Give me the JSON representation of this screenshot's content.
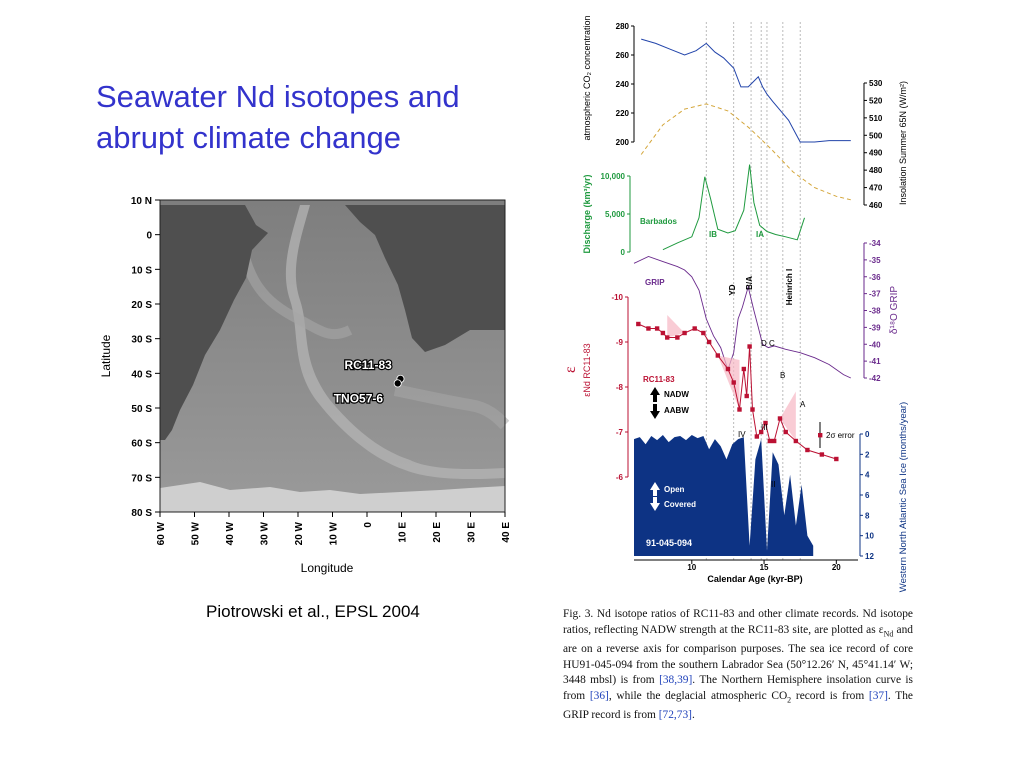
{
  "slide": {
    "title_line1": "Seawater Nd isotopes and",
    "title_line2": "abrupt climate change",
    "citation": "Piotrowski et al., EPSL 2004"
  },
  "map": {
    "lat_labels": [
      "10 N",
      "0",
      "10 S",
      "20 S",
      "30 S",
      "40 S",
      "50 S",
      "60 S",
      "70 S",
      "80 S"
    ],
    "lon_labels": [
      "60 W",
      "50 W",
      "40 W",
      "30 W",
      "20 W",
      "10 W",
      "0",
      "10 E",
      "20 E",
      "30 E",
      "40 E"
    ],
    "ylabel": "Latitude",
    "xlabel": "Longitude",
    "sites": [
      {
        "name": "RC11-83",
        "lat": -41.6,
        "lon": 9.7
      },
      {
        "name": "TNO57-6",
        "lat": -42.9,
        "lon": 8.9
      }
    ],
    "colors": {
      "ocean": "#8c8c8c",
      "land": "#4f4f4f",
      "ridge": "#b4b4b4"
    }
  },
  "chart_data": [
    {
      "type": "line",
      "title": "",
      "xlabel": "Calendar Age (kyr-BP)",
      "x_ticks": [
        10,
        15,
        20
      ],
      "xlim": [
        6,
        21.5
      ],
      "event_lines": [
        11,
        12.9,
        14.1,
        14.8,
        15.2,
        16.3,
        17.5
      ],
      "panels": [
        {
          "name": "co2",
          "ylabel": "atmospheric CO₂ concentration",
          "axis": "left",
          "yticks": [
            "280",
            "260",
            "240",
            "220",
            "200"
          ],
          "ylim": [
            200,
            280
          ],
          "color": "#2244aa",
          "series": [
            {
              "x": [
                6.5,
                7.5,
                8.5,
                9.5,
                10.3,
                11.0,
                11.6,
                12.2,
                12.9,
                13.4,
                13.9,
                14.1,
                14.6,
                14.9,
                15.2,
                15.6,
                16.1,
                16.7,
                17.5,
                18.5,
                19.5,
                20.5,
                21.0
              ],
              "y": [
                271,
                268,
                264,
                260,
                263,
                268,
                262,
                258,
                251,
                238,
                238,
                240,
                245,
                238,
                233,
                228,
                222,
                215,
                200,
                200,
                201,
                201,
                201
              ]
            }
          ]
        },
        {
          "name": "insolation",
          "ylabel": "Insolation Summer 65N (W/m²)",
          "axis": "right",
          "yticks": [
            "530",
            "520",
            "510",
            "500",
            "490",
            "480",
            "470",
            "460"
          ],
          "ylim": [
            460,
            530
          ],
          "color": "#d4a63a",
          "style": "dashed",
          "series": [
            {
              "x": [
                6.5,
                8,
                9.5,
                11,
                12.5,
                14,
                15.5,
                17,
                18.5,
                20,
                21
              ],
              "y": [
                489,
                506,
                515,
                518,
                514,
                504,
                492,
                479,
                470,
                465,
                463
              ]
            }
          ]
        },
        {
          "name": "discharge",
          "ylabel": "Discharge (km³/yr)",
          "axis": "left",
          "yticks": [
            "10,000",
            "5,000",
            "0"
          ],
          "ylim": [
            0,
            10000
          ],
          "color": "#1f9a3f",
          "label": "Barbados",
          "peaks": [
            "IB",
            "IA"
          ],
          "series": [
            {
              "x": [
                8,
                9,
                10,
                10.5,
                10.9,
                11.3,
                11.8,
                12.5,
                13,
                13.6,
                14.0,
                14.3,
                14.7,
                15.2,
                15.8,
                16.5,
                17.3,
                17.8
              ],
              "y": [
                300,
                1200,
                2000,
                4500,
                9900,
                7000,
                3000,
                2500,
                2800,
                5500,
                11500,
                6500,
                3500,
                2700,
                2300,
                2000,
                1600,
                4500
              ]
            }
          ]
        },
        {
          "name": "grip",
          "ylabel": "δ¹⁸O GRIP",
          "axis": "right",
          "yticks": [
            "-34",
            "-35",
            "-36",
            "-37",
            "-38",
            "-39",
            "-40",
            "-41",
            "-42"
          ],
          "ylim": [
            -42,
            -34
          ],
          "color": "#6a2a8c",
          "label": "GRIP",
          "annotations": [
            "YD",
            "B/A",
            "Heinrich I"
          ],
          "series": [
            {
              "x": [
                6,
                7,
                8,
                9,
                9.5,
                10,
                10.5,
                11,
                11.5,
                12,
                12.5,
                12.9,
                13.2,
                13.5,
                13.9,
                14.3,
                14.6,
                14.9,
                15.3,
                15.7,
                16.5,
                17.5,
                18.5,
                19.5,
                20.5,
                21
              ],
              "y": [
                -35.2,
                -34.8,
                -35.1,
                -35.4,
                -35.6,
                -36,
                -36.8,
                -38.5,
                -39.5,
                -40.2,
                -41.5,
                -40.5,
                -38.5,
                -37.8,
                -36.6,
                -38.0,
                -39.0,
                -40.0,
                -40.2,
                -40.1,
                -40.3,
                -40.5,
                -40.8,
                -41.2,
                -41.8,
                -42
              ]
            }
          ]
        },
        {
          "name": "end",
          "ylabel": "εNd RC11-83",
          "axis": "left",
          "yticks": [
            "-10",
            "-9",
            "-8",
            "-7",
            "-6"
          ],
          "ylim": [
            -10.3,
            -5.8
          ],
          "reverse": true,
          "color": "#bb1133",
          "label": "RC11-83",
          "legend": [
            "NADW",
            "AABW"
          ],
          "error_label": "2σ error",
          "event_labels": [
            "D",
            "C",
            "B",
            "A",
            "IV",
            "III",
            "II"
          ],
          "series": [
            {
              "x": [
                6.3,
                7.0,
                7.6,
                8.0,
                8.3,
                9.0,
                9.5,
                10.2,
                10.8,
                11.2,
                11.8,
                12.5,
                12.9,
                13.3,
                13.6,
                13.8,
                14.0,
                14.2,
                14.5,
                14.8,
                15.1,
                15.4,
                15.7,
                16.1,
                16.5,
                17.2,
                18.0,
                19.0,
                20.0
              ],
              "y": [
                -9.4,
                -9.3,
                -9.3,
                -9.2,
                -9.1,
                -9.1,
                -9.2,
                -9.3,
                -9.2,
                -9.0,
                -8.7,
                -8.4,
                -8.1,
                -7.5,
                -8.4,
                -7.8,
                -8.9,
                -7.5,
                -6.9,
                -7.0,
                -7.2,
                -6.8,
                -6.8,
                -7.3,
                -7.0,
                -6.8,
                -6.6,
                -6.5,
                -6.4
              ]
            }
          ]
        },
        {
          "name": "seaice",
          "ylabel": "Western North Atlantic Sea Ice (months/year)",
          "axis": "right",
          "yticks": [
            "0",
            "2",
            "4",
            "6",
            "8",
            "10",
            "12"
          ],
          "ylim": [
            0,
            12
          ],
          "reverse": true,
          "color": "#0d3384",
          "label": "91-045-094",
          "legend": [
            "Open",
            "Covered"
          ],
          "series": [
            {
              "x": [
                6,
                6.4,
                6.8,
                7.2,
                7.6,
                8.0,
                8.4,
                8.8,
                9.2,
                9.6,
                10.0,
                10.4,
                10.8,
                11.2,
                11.6,
                12.0,
                12.4,
                12.8,
                13.2,
                13.6,
                14.0,
                14.4,
                14.8,
                15.2,
                15.6,
                16.0,
                16.4,
                16.8,
                17.2,
                17.6,
                18.0,
                18.4
              ],
              "y": [
                0.5,
                0.3,
                1.0,
                0.2,
                0.6,
                0.1,
                0.8,
                0.3,
                0.2,
                0.6,
                0.1,
                0.4,
                0.2,
                1.5,
                0.5,
                1.2,
                2.5,
                1.0,
                0.5,
                0.3,
                11,
                2.5,
                0.5,
                11.5,
                1.8,
                3,
                8,
                4,
                9,
                5,
                10,
                11
              ]
            }
          ]
        }
      ]
    }
  ],
  "caption": {
    "part1": "Fig. 3. Nd isotope ratios of RC11-83 and other climate records. Nd isotope ratios, reflecting NADW strength at the RC11-83 site, are plotted as ε",
    "sub1": "Nd",
    "part2": " and are on a reverse axis for comparison purposes. The sea ice record of core HU91-045-094 from the southern Labrador Sea (50°12.26′ N, 45°41.14′ W; 3448 mbsl) is from ",
    "ref1": "[38,39]",
    "part3": ". The Northern Hemisphere insolation curve is from ",
    "ref2": "[36]",
    "part4": ", while the deglacial atmospheric CO",
    "sub2": "2",
    "part5": " record is from ",
    "ref3": "[37]",
    "part6": ". The GRIP record is from ",
    "ref4": "[72,73]",
    "part7": "."
  }
}
